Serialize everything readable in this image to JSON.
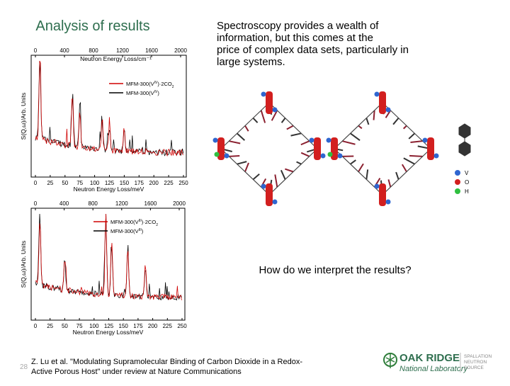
{
  "slide": {
    "title": "Analysis of results",
    "body_lines": [
      "Spectroscopy provides a wealth of",
      "information, but this comes at the",
      "price of complex data sets, particularly in",
      "large systems."
    ],
    "question": "How do we interpret the results?",
    "citation_lines": [
      "Z. Lu et al. \"Modulating Supramolecular Binding of Carbon Dioxide in a Redox-",
      "Active Porous Host\" under review at Nature Communications"
    ],
    "slide_number": "28",
    "plots": [
      {
        "top_axis_label": "Neutron Energy Loss/cm⁻¹",
        "top_ticks": [
          "0",
          "400",
          "800",
          "1200",
          "1600",
          "2000"
        ],
        "bottom_axis_label": "Neutron Energy Loss/meV",
        "bottom_ticks": [
          "0",
          "25",
          "50",
          "75",
          "100",
          "125",
          "150",
          "175",
          "200",
          "225",
          "250"
        ],
        "y_axis_label": "S(Q,ω)/Arb. Units",
        "legend": [
          [
            {
              "t": "MFM-300(V"
            },
            {
              "sup": "IV"
            },
            {
              "t": ")·2CO"
            },
            {
              "sub": "2"
            }
          ],
          [
            {
              "t": "MFM-300(V"
            },
            {
              "sup": "IV"
            },
            {
              "t": ")"
            }
          ]
        ]
      },
      {
        "top_axis_label": "",
        "top_ticks": [
          "0",
          "400",
          "800",
          "1200",
          "1600",
          "2000"
        ],
        "bottom_axis_label": "Neutron Energy Loss/meV",
        "bottom_ticks": [
          "0",
          "25",
          "50",
          "75",
          "100",
          "125",
          "150",
          "175",
          "200",
          "225",
          "250"
        ],
        "y_axis_label": "S(Q,ω)/Arb. Units",
        "legend": [
          [
            {
              "t": "MFM-300(V"
            },
            {
              "sup": "III"
            },
            {
              "t": ")·2CO"
            },
            {
              "sub": "2"
            }
          ],
          [
            {
              "t": "MFM-300(V"
            },
            {
              "sup": "III"
            },
            {
              "t": ")"
            }
          ]
        ]
      }
    ],
    "atom_legend": [
      "V",
      "O",
      "H"
    ],
    "logo": {
      "main": "OAK RIDGE",
      "sub": "National Laboratory",
      "side": [
        "SPALLATION",
        "NEUTRON",
        "SOURCE"
      ]
    }
  }
}
